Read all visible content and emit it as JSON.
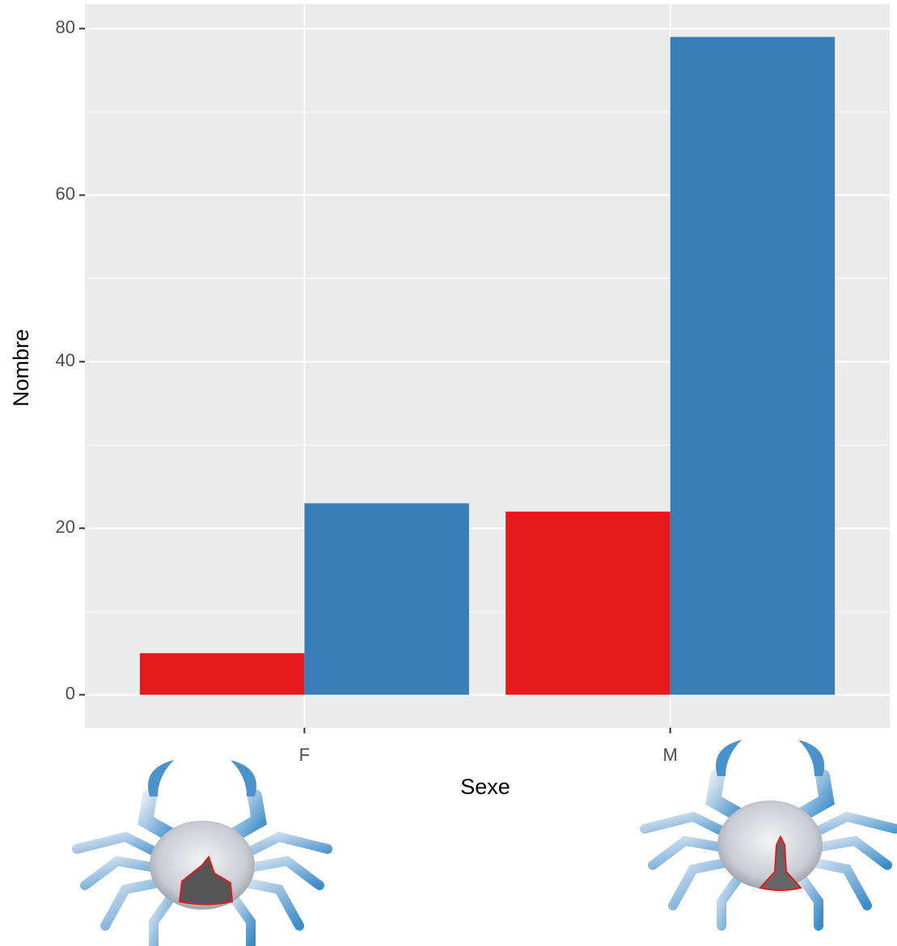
{
  "chart_data": {
    "type": "bar",
    "x_label": "Sexe",
    "y_label": "Nombre",
    "categories": [
      "F",
      "M"
    ],
    "series": [
      {
        "color": "#e41a1c",
        "values": [
          5,
          22
        ]
      },
      {
        "color": "#377eb8",
        "values": [
          23,
          79
        ]
      }
    ],
    "ylim": [
      -3.95,
      82.95
    ],
    "yticks": [
      0,
      20,
      40,
      60,
      80
    ],
    "y_minor_grid": [
      10,
      30,
      50,
      70
    ],
    "grid": true
  }
}
